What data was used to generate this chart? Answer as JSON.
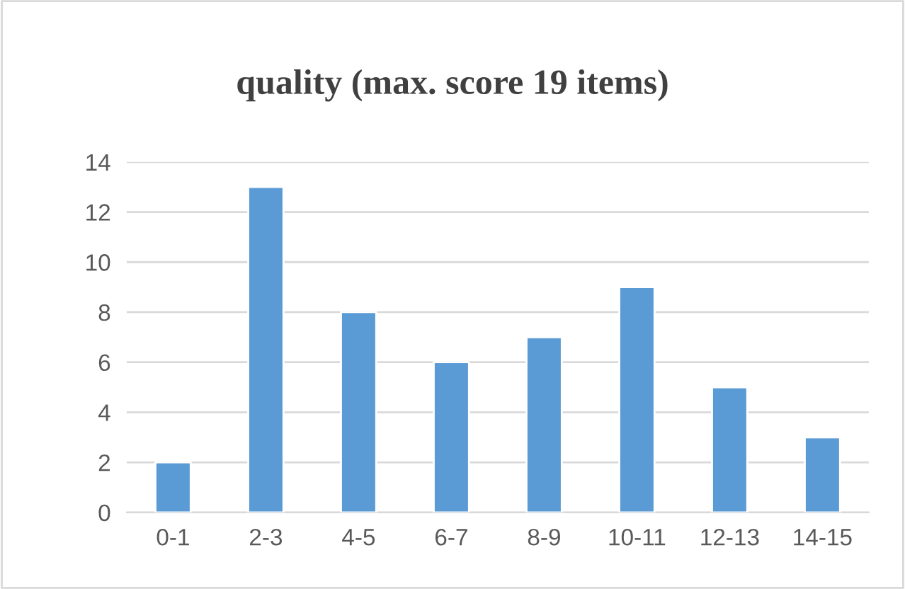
{
  "chart_data": {
    "type": "bar",
    "title": "quality (max. score 19 items)",
    "categories": [
      "0-1",
      "2-3",
      "4-5",
      "6-7",
      "8-9",
      "10-11",
      "12-13",
      "14-15"
    ],
    "values": [
      2,
      13,
      8,
      6,
      7,
      9,
      5,
      3
    ],
    "color": "#5b9bd5",
    "ylim": [
      0,
      14
    ],
    "yticks": [
      0,
      2,
      4,
      6,
      8,
      10,
      12,
      14
    ],
    "grid": "y",
    "legend": false
  }
}
